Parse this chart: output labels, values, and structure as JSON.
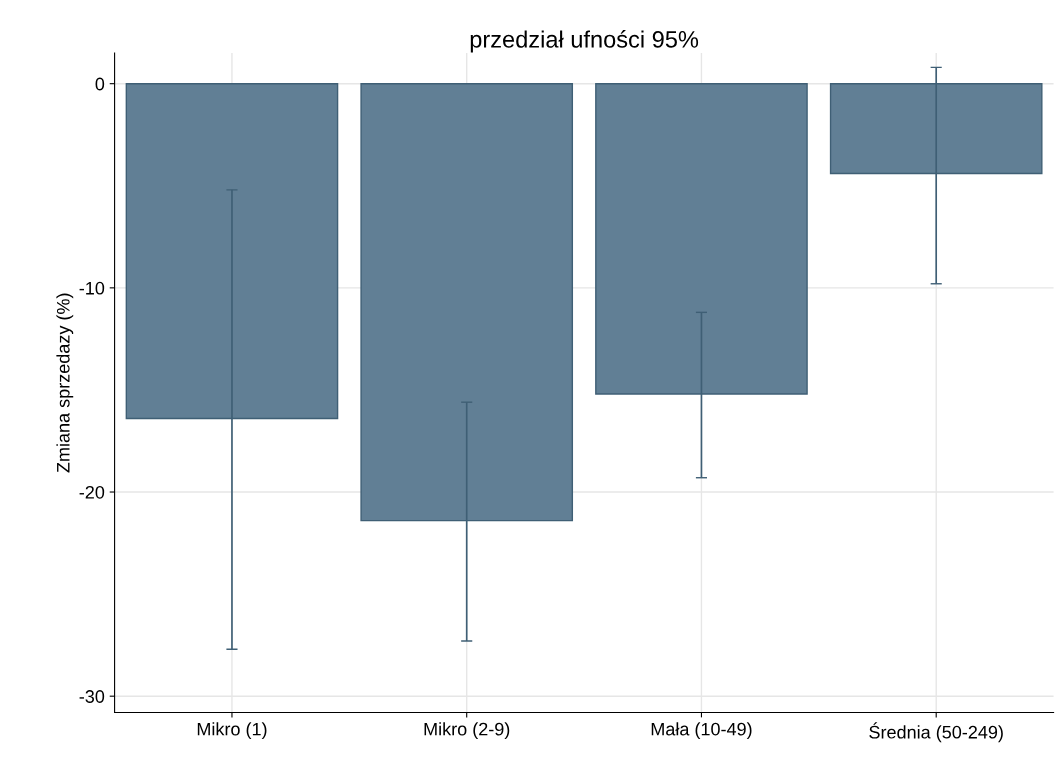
{
  "chart_data": {
    "type": "bar",
    "title": "przedział ufności 95%",
    "ylabel": "Zmiana sprzedazy (%)",
    "categories": [
      "Mikro (1)",
      "Mikro (2-9)",
      "Mała (10-49)",
      "Średnia (50-249)"
    ],
    "values": [
      -16.4,
      -21.4,
      -15.2,
      -4.4
    ],
    "errors": [
      [
        -27.7,
        -5.2
      ],
      [
        -27.3,
        -15.6
      ],
      [
        -19.3,
        -11.2
      ],
      [
        -9.8,
        0.8
      ]
    ],
    "color": "#617f95",
    "ylim": [
      -30.8,
      1.5
    ],
    "yticks": [
      0,
      -10,
      -20,
      -30
    ],
    "grid": true
  }
}
